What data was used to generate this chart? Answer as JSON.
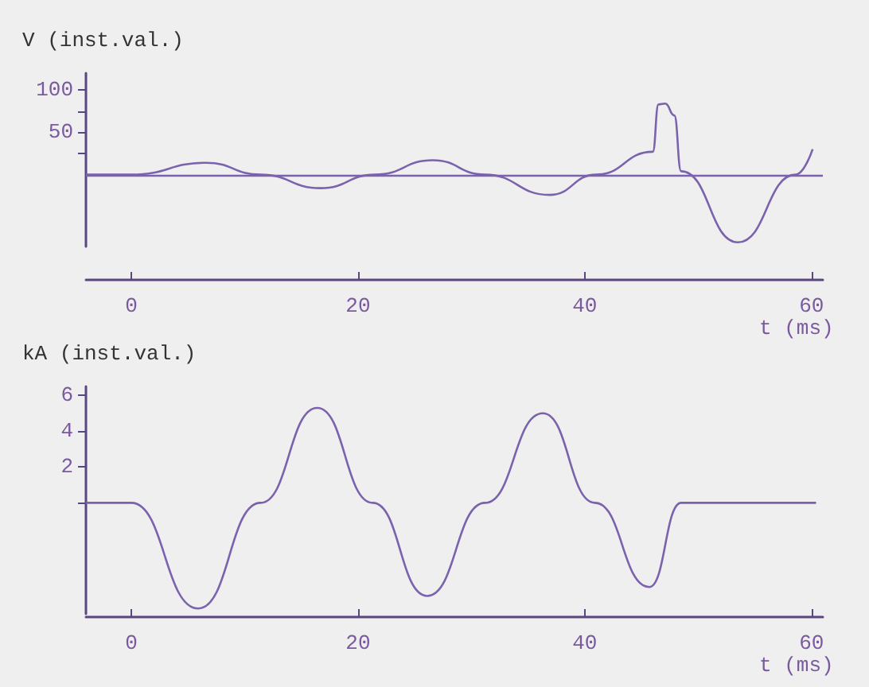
{
  "chart_data": [
    {
      "type": "line",
      "ylabel": "V (inst.val.)",
      "xlabel": "t (ms)",
      "x": [
        -4,
        0,
        6.6,
        11.4,
        16.7,
        21.5,
        26.6,
        31.2,
        36.9,
        41,
        46,
        46.5,
        47.1,
        47.9,
        48.5,
        53.5,
        58.6,
        60.1
      ],
      "series": [
        {
          "color": "#7b62ad",
          "values": [
            0,
            0,
            14,
            0,
            -16,
            0,
            17,
            0,
            -24,
            0,
            27,
            83,
            84,
            70,
            4,
            -80,
            0,
            30
          ]
        }
      ],
      "xlim": [
        -4,
        61
      ],
      "xticks": [
        0,
        20,
        40,
        60
      ],
      "ylim": [
        -85,
        120
      ],
      "yticks": [
        {
          "value": 25,
          "label": null
        },
        50,
        {
          "value": 75,
          "label": null
        },
        100
      ],
      "ref_lines": [
        {
          "axis": "y",
          "value": 0,
          "color": "#7b62ad"
        }
      ],
      "grid": false,
      "marker": "none",
      "line_style": "solid"
    },
    {
      "type": "line",
      "ylabel": "kA (inst.val.)",
      "xlabel": "t (ms)",
      "x": [
        -4,
        0,
        5.9,
        11.4,
        16.4,
        21.3,
        26.1,
        31.2,
        36.3,
        40.9,
        45.7,
        48.5,
        60.4
      ],
      "series": [
        {
          "color": "#7b62ad",
          "values": [
            0,
            0,
            -5.9,
            0,
            5.3,
            0,
            -5.2,
            0,
            5,
            0,
            -4.7,
            0,
            0
          ]
        }
      ],
      "xlim": [
        -4,
        61
      ],
      "xticks": [
        0,
        20,
        40,
        60
      ],
      "ylim": [
        -6.2,
        6.5
      ],
      "yticks": [
        {
          "value": 0,
          "label": null
        },
        2,
        4,
        6
      ],
      "grid": false,
      "marker": "none",
      "line_style": "solid"
    }
  ]
}
